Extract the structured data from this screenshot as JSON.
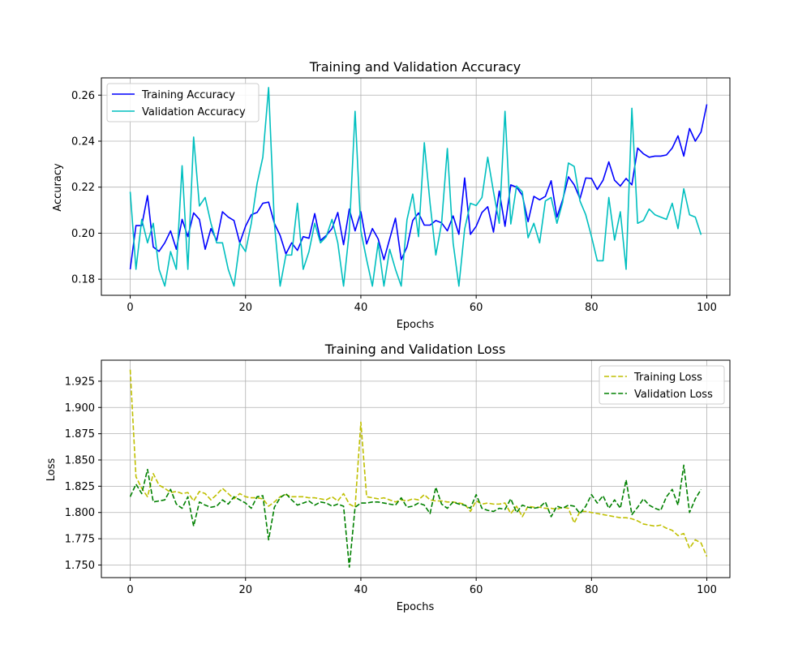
{
  "chart_data": [
    {
      "type": "line",
      "title": "Training and Validation Accuracy",
      "xlabel": "Epochs",
      "ylabel": "Accuracy",
      "xlim": [
        -5,
        104
      ],
      "ylim": [
        0.173,
        0.2675
      ],
      "xticks": [
        0,
        20,
        40,
        60,
        80,
        100
      ],
      "yticks": [
        0.18,
        0.2,
        0.22,
        0.24,
        0.26
      ],
      "ytick_labels": [
        "0.18",
        "0.20",
        "0.22",
        "0.24",
        "0.26"
      ],
      "grid": true,
      "legend": "upper left",
      "series": [
        {
          "name": "Training Accuracy",
          "color": "#0000ff",
          "style": "solid",
          "values": [
            0.1843,
            0.2033,
            0.2033,
            0.2163,
            0.194,
            0.1921,
            0.1958,
            0.201,
            0.193,
            0.206,
            0.1985,
            0.2088,
            0.206,
            0.193,
            0.202,
            0.1968,
            0.2093,
            0.207,
            0.2055,
            0.1958,
            0.203,
            0.208,
            0.209,
            0.213,
            0.2135,
            0.2043,
            0.199,
            0.191,
            0.1958,
            0.1925,
            0.1985,
            0.1978,
            0.2085,
            0.1968,
            0.199,
            0.202,
            0.209,
            0.195,
            0.2105,
            0.201,
            0.2093,
            0.1953,
            0.202,
            0.1975,
            0.1885,
            0.1975,
            0.2065,
            0.1885,
            0.194,
            0.2055,
            0.2088,
            0.2035,
            0.2035,
            0.2055,
            0.2045,
            0.201,
            0.2075,
            0.1995,
            0.224,
            0.1995,
            0.203,
            0.209,
            0.2115,
            0.2005,
            0.2183,
            0.203,
            0.221,
            0.22,
            0.2165,
            0.205,
            0.216,
            0.2145,
            0.216,
            0.2228,
            0.207,
            0.2145,
            0.2245,
            0.221,
            0.215,
            0.224,
            0.2238,
            0.219,
            0.223,
            0.231,
            0.223,
            0.2205,
            0.2238,
            0.221,
            0.237,
            0.2345,
            0.233,
            0.2335,
            0.2335,
            0.234,
            0.237,
            0.2423,
            0.2335,
            0.2455,
            0.24,
            0.244,
            0.256
          ]
        },
        {
          "name": "Validation Accuracy",
          "color": "#00bfbf",
          "style": "solid",
          "values": [
            0.218,
            0.1843,
            0.206,
            0.1958,
            0.2043,
            0.1843,
            0.177,
            0.192,
            0.1843,
            0.2293,
            0.1843,
            0.2418,
            0.2118,
            0.2155,
            0.2043,
            0.1958,
            0.1958,
            0.1843,
            0.177,
            0.1958,
            0.192,
            0.2043,
            0.2215,
            0.233,
            0.2633,
            0.2043,
            0.177,
            0.1905,
            0.1905,
            0.213,
            0.1843,
            0.192,
            0.2043,
            0.1958,
            0.1985,
            0.206,
            0.1958,
            0.177,
            0.201,
            0.253,
            0.201,
            0.1885,
            0.177,
            0.1958,
            0.177,
            0.193,
            0.1843,
            0.177,
            0.2058,
            0.217,
            0.1985,
            0.2393,
            0.213,
            0.1905,
            0.2043,
            0.2368,
            0.1958,
            0.177,
            0.2018,
            0.213,
            0.212,
            0.2155,
            0.233,
            0.218,
            0.2043,
            0.253,
            0.204,
            0.2205,
            0.218,
            0.198,
            0.2043,
            0.1958,
            0.214,
            0.2155,
            0.2043,
            0.2135,
            0.2305,
            0.229,
            0.214,
            0.208,
            0.1985,
            0.188,
            0.188,
            0.2155,
            0.197,
            0.2093,
            0.1843,
            0.2543,
            0.2043,
            0.2055,
            0.2105,
            0.208,
            0.207,
            0.206,
            0.213,
            0.202,
            0.2193,
            0.208,
            0.207,
            0.1993
          ]
        }
      ]
    },
    {
      "type": "line",
      "title": "Training and Validation Loss",
      "xlabel": "Epochs",
      "ylabel": "Loss",
      "xlim": [
        -5,
        104
      ],
      "ylim": [
        1.738,
        1.945
      ],
      "xticks": [
        0,
        20,
        40,
        60,
        80,
        100
      ],
      "yticks": [
        1.75,
        1.775,
        1.8,
        1.825,
        1.85,
        1.875,
        1.9,
        1.925
      ],
      "ytick_labels": [
        "1.750",
        "1.775",
        "1.800",
        "1.825",
        "1.850",
        "1.875",
        "1.900",
        "1.925"
      ],
      "grid": true,
      "legend": "upper right",
      "series": [
        {
          "name": "Training Loss",
          "color": "#bfbf00",
          "style": "dashed",
          "values": [
            1.936,
            1.834,
            1.823,
            1.815,
            1.837,
            1.826,
            1.823,
            1.819,
            1.82,
            1.818,
            1.819,
            1.811,
            1.82,
            1.818,
            1.812,
            1.817,
            1.823,
            1.818,
            1.813,
            1.818,
            1.815,
            1.814,
            1.814,
            1.813,
            1.806,
            1.81,
            1.815,
            1.817,
            1.815,
            1.815,
            1.815,
            1.814,
            1.814,
            1.813,
            1.812,
            1.815,
            1.811,
            1.818,
            1.808,
            1.805,
            1.886,
            1.815,
            1.814,
            1.813,
            1.814,
            1.812,
            1.81,
            1.812,
            1.811,
            1.813,
            1.812,
            1.817,
            1.812,
            1.811,
            1.811,
            1.81,
            1.81,
            1.809,
            1.808,
            1.801,
            1.811,
            1.808,
            1.809,
            1.808,
            1.808,
            1.809,
            1.799,
            1.806,
            1.796,
            1.806,
            1.805,
            1.805,
            1.804,
            1.804,
            1.803,
            1.805,
            1.804,
            1.79,
            1.801,
            1.801,
            1.8,
            1.799,
            1.798,
            1.797,
            1.796,
            1.795,
            1.795,
            1.794,
            1.792,
            1.789,
            1.788,
            1.787,
            1.788,
            1.785,
            1.783,
            1.778,
            1.78,
            1.766,
            1.774,
            1.771,
            1.758
          ]
        },
        {
          "name": "Validation Loss",
          "color": "#008000",
          "style": "dashed",
          "values": [
            1.815,
            1.827,
            1.818,
            1.841,
            1.81,
            1.811,
            1.812,
            1.822,
            1.808,
            1.804,
            1.815,
            1.787,
            1.81,
            1.807,
            1.805,
            1.806,
            1.812,
            1.808,
            1.815,
            1.812,
            1.809,
            1.804,
            1.815,
            1.816,
            1.774,
            1.805,
            1.814,
            1.818,
            1.812,
            1.807,
            1.809,
            1.811,
            1.807,
            1.81,
            1.809,
            1.806,
            1.808,
            1.806,
            1.748,
            1.805,
            1.809,
            1.809,
            1.81,
            1.81,
            1.809,
            1.808,
            1.807,
            1.814,
            1.805,
            1.806,
            1.809,
            1.807,
            1.799,
            1.824,
            1.808,
            1.804,
            1.81,
            1.808,
            1.807,
            1.804,
            1.817,
            1.804,
            1.802,
            1.801,
            1.804,
            1.803,
            1.813,
            1.8,
            1.807,
            1.805,
            1.804,
            1.805,
            1.81,
            1.796,
            1.806,
            1.804,
            1.807,
            1.806,
            1.799,
            1.806,
            1.817,
            1.809,
            1.816,
            1.804,
            1.812,
            1.804,
            1.831,
            1.798,
            1.805,
            1.813,
            1.807,
            1.804,
            1.802,
            1.815,
            1.822,
            1.807,
            1.845,
            1.8,
            1.813,
            1.822
          ]
        }
      ]
    }
  ]
}
